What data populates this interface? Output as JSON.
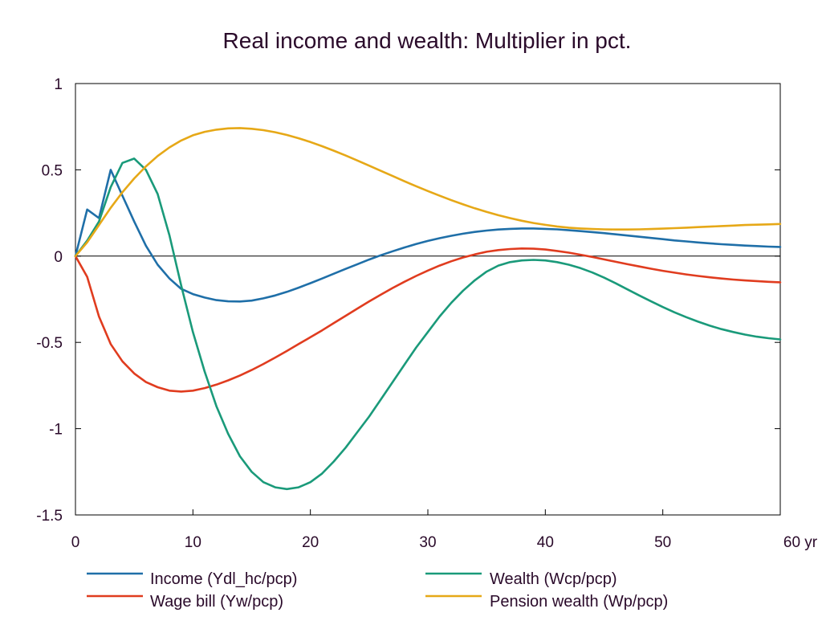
{
  "chart_data": {
    "type": "line",
    "title": "Real income and wealth: Multiplier in pct.",
    "xlabel": "",
    "ylabel": "",
    "x_unit": "yr",
    "xlim": [
      0,
      60
    ],
    "ylim": [
      -1.5,
      1
    ],
    "x_ticks": [
      0,
      10,
      20,
      30,
      40,
      50,
      60
    ],
    "x_tick_labels": [
      "0",
      "10",
      "20",
      "30",
      "40",
      "50",
      "60 yr"
    ],
    "y_ticks": [
      1,
      0.5,
      0,
      -0.5,
      -1,
      -1.5
    ],
    "y_tick_labels": [
      "1",
      "0.5",
      "0",
      "-0.5",
      "-1",
      "-1.5"
    ],
    "grid": false,
    "zero_line": true,
    "legend_position": "bottom",
    "series": [
      {
        "name": "Income (Ydl_hc/pcp)",
        "color": "#1f6fa8",
        "x": [
          0,
          1,
          2,
          3,
          4,
          5,
          6,
          7,
          8,
          9,
          10,
          11,
          12,
          13,
          14,
          15,
          16,
          17,
          18,
          19,
          20,
          21,
          22,
          23,
          24,
          25,
          26,
          27,
          28,
          29,
          30,
          31,
          32,
          33,
          34,
          35,
          36,
          37,
          38,
          39,
          40,
          41,
          42,
          43,
          44,
          45,
          46,
          47,
          48,
          49,
          50,
          51,
          52,
          53,
          54,
          55,
          56,
          57,
          58,
          59,
          60
        ],
        "values": [
          0,
          0.27,
          0.22,
          0.5,
          0.35,
          0.2,
          0.06,
          -0.05,
          -0.13,
          -0.19,
          -0.22,
          -0.24,
          -0.255,
          -0.262,
          -0.263,
          -0.258,
          -0.245,
          -0.228,
          -0.207,
          -0.183,
          -0.157,
          -0.13,
          -0.102,
          -0.074,
          -0.047,
          -0.02,
          0.005,
          0.028,
          0.05,
          0.07,
          0.088,
          0.104,
          0.118,
          0.13,
          0.14,
          0.148,
          0.154,
          0.158,
          0.16,
          0.16,
          0.158,
          0.155,
          0.15,
          0.145,
          0.139,
          0.133,
          0.126,
          0.119,
          0.112,
          0.105,
          0.098,
          0.091,
          0.085,
          0.079,
          0.074,
          0.069,
          0.065,
          0.061,
          0.058,
          0.055,
          0.053
        ]
      },
      {
        "name": "Wage bill (Yw/pcp)",
        "color": "#e03c1f",
        "x": [
          0,
          1,
          2,
          3,
          4,
          5,
          6,
          7,
          8,
          9,
          10,
          11,
          12,
          13,
          14,
          15,
          16,
          17,
          18,
          19,
          20,
          21,
          22,
          23,
          24,
          25,
          26,
          27,
          28,
          29,
          30,
          31,
          32,
          33,
          34,
          35,
          36,
          37,
          38,
          39,
          40,
          41,
          42,
          43,
          44,
          45,
          46,
          47,
          48,
          49,
          50,
          51,
          52,
          53,
          54,
          55,
          56,
          57,
          58,
          59,
          60
        ],
        "values": [
          0,
          -0.12,
          -0.35,
          -0.51,
          -0.61,
          -0.68,
          -0.73,
          -0.76,
          -0.78,
          -0.785,
          -0.78,
          -0.765,
          -0.745,
          -0.72,
          -0.692,
          -0.66,
          -0.625,
          -0.588,
          -0.55,
          -0.51,
          -0.47,
          -0.43,
          -0.388,
          -0.346,
          -0.304,
          -0.263,
          -0.223,
          -0.185,
          -0.149,
          -0.115,
          -0.084,
          -0.055,
          -0.03,
          -0.008,
          0.01,
          0.025,
          0.035,
          0.041,
          0.044,
          0.043,
          0.038,
          0.03,
          0.02,
          0.008,
          -0.005,
          -0.019,
          -0.033,
          -0.047,
          -0.06,
          -0.073,
          -0.085,
          -0.096,
          -0.106,
          -0.115,
          -0.123,
          -0.13,
          -0.136,
          -0.141,
          -0.145,
          -0.149,
          -0.152
        ]
      },
      {
        "name": "Wealth (Wcp/pcp)",
        "color": "#1a9a7a",
        "x": [
          0,
          1,
          2,
          3,
          4,
          5,
          6,
          7,
          8,
          9,
          10,
          11,
          12,
          13,
          14,
          15,
          16,
          17,
          18,
          19,
          20,
          21,
          22,
          23,
          24,
          25,
          26,
          27,
          28,
          29,
          30,
          31,
          32,
          33,
          34,
          35,
          36,
          37,
          38,
          39,
          40,
          41,
          42,
          43,
          44,
          45,
          46,
          47,
          48,
          49,
          50,
          51,
          52,
          53,
          54,
          55,
          56,
          57,
          58,
          59,
          60
        ],
        "values": [
          0,
          0.09,
          0.2,
          0.4,
          0.54,
          0.565,
          0.5,
          0.36,
          0.12,
          -0.17,
          -0.44,
          -0.67,
          -0.87,
          -1.03,
          -1.16,
          -1.25,
          -1.31,
          -1.34,
          -1.35,
          -1.34,
          -1.31,
          -1.26,
          -1.19,
          -1.11,
          -1.02,
          -0.93,
          -0.83,
          -0.73,
          -0.63,
          -0.53,
          -0.44,
          -0.35,
          -0.27,
          -0.2,
          -0.14,
          -0.09,
          -0.055,
          -0.035,
          -0.025,
          -0.022,
          -0.025,
          -0.035,
          -0.05,
          -0.07,
          -0.095,
          -0.125,
          -0.158,
          -0.193,
          -0.228,
          -0.262,
          -0.295,
          -0.326,
          -0.354,
          -0.38,
          -0.403,
          -0.423,
          -0.44,
          -0.455,
          -0.467,
          -0.476,
          -0.483
        ]
      },
      {
        "name": "Pension wealth (Wp/pcp)",
        "color": "#e6a817",
        "x": [
          0,
          1,
          2,
          3,
          4,
          5,
          6,
          7,
          8,
          9,
          10,
          11,
          12,
          13,
          14,
          15,
          16,
          17,
          18,
          19,
          20,
          21,
          22,
          23,
          24,
          25,
          26,
          27,
          28,
          29,
          30,
          31,
          32,
          33,
          34,
          35,
          36,
          37,
          38,
          39,
          40,
          41,
          42,
          43,
          44,
          45,
          46,
          47,
          48,
          49,
          50,
          51,
          52,
          53,
          54,
          55,
          56,
          57,
          58,
          59,
          60
        ],
        "values": [
          0,
          0.08,
          0.18,
          0.28,
          0.37,
          0.45,
          0.52,
          0.58,
          0.63,
          0.67,
          0.7,
          0.72,
          0.733,
          0.74,
          0.742,
          0.738,
          0.73,
          0.718,
          0.702,
          0.683,
          0.661,
          0.637,
          0.611,
          0.583,
          0.554,
          0.524,
          0.494,
          0.464,
          0.434,
          0.405,
          0.377,
          0.35,
          0.324,
          0.3,
          0.277,
          0.256,
          0.237,
          0.22,
          0.205,
          0.192,
          0.181,
          0.172,
          0.165,
          0.16,
          0.157,
          0.155,
          0.154,
          0.154,
          0.155,
          0.157,
          0.159,
          0.162,
          0.165,
          0.168,
          0.171,
          0.174,
          0.177,
          0.18,
          0.182,
          0.184,
          0.186
        ]
      }
    ]
  }
}
